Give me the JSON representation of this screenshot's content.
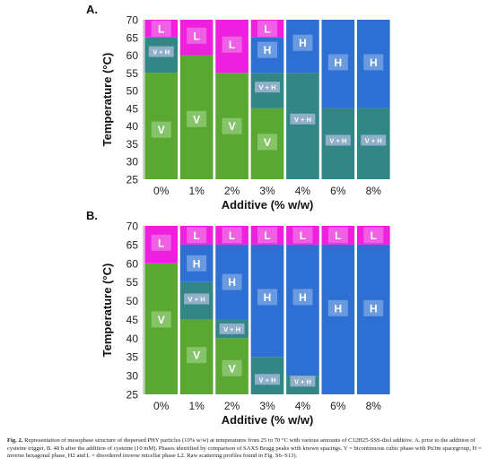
{
  "colors": {
    "V": "#5aa832",
    "L": "#ee1fde",
    "H": "#2e6fd3",
    "VH_base": "#2a8a7e",
    "VH_stripe": "#3f7f90",
    "label_box_V": "#86c46a",
    "label_box_L": "#f060e4",
    "label_box_H": "#6a9ae0",
    "label_box_VH": "#8fb0c8"
  },
  "caption": {
    "label": "Fig. 2.",
    "text": "Representation of mesophase structure of dispersed PHY particles (10% w/w) at temperatures from 25 to 70 °C with various amounts of C12H25-SSS-diol additive. A. prior to the addition of cysteine trigger, B. 48 h after the addition of cysteine (10 mM). Phases identified by comparison of SAXS Bragg peaks with known spacings. V = bicontinuous cubic phase with Pn3m spacegroup, H = inverse hexagonal phase, H2 and L = disordered inverse micellar phase L2. Raw scattering profiles found in Fig. S6–S13)."
  },
  "chart_data": [
    {
      "panel": "A.",
      "type": "bar",
      "xlabel": "Additive (% w/w)",
      "ylabel": "Temperature (°C)",
      "ylim": [
        25,
        70
      ],
      "yticks": [
        25,
        30,
        35,
        40,
        45,
        50,
        55,
        60,
        65,
        70
      ],
      "categories": [
        "0%",
        "1%",
        "2%",
        "3%",
        "4%",
        "6%",
        "8%"
      ],
      "columns": [
        {
          "segments": [
            {
              "phase": "V",
              "from": 25,
              "to": 55,
              "label": "V",
              "label_at": 39
            },
            {
              "phase": "VH",
              "from": 55,
              "to": 65,
              "label": "V + H",
              "label_at": 61
            },
            {
              "phase": "L",
              "from": 65,
              "to": 70,
              "label": "L",
              "label_at": 67.5
            }
          ]
        },
        {
          "segments": [
            {
              "phase": "V",
              "from": 25,
              "to": 60,
              "label": "V",
              "label_at": 42
            },
            {
              "phase": "L",
              "from": 60,
              "to": 70,
              "label": "L",
              "label_at": 65.5
            }
          ]
        },
        {
          "segments": [
            {
              "phase": "V",
              "from": 25,
              "to": 55,
              "label": "V",
              "label_at": 40
            },
            {
              "phase": "L",
              "from": 55,
              "to": 70,
              "label": "L",
              "label_at": 63
            }
          ]
        },
        {
          "segments": [
            {
              "phase": "V",
              "from": 25,
              "to": 45,
              "label": "V",
              "label_at": 35.5
            },
            {
              "phase": "VH",
              "from": 45,
              "to": 55,
              "label": "V + H",
              "label_at": 51
            },
            {
              "phase": "H",
              "from": 55,
              "to": 65,
              "label": "H",
              "label_at": 61.5
            },
            {
              "phase": "L",
              "from": 65,
              "to": 70,
              "label": "L",
              "label_at": 67.5
            }
          ]
        },
        {
          "segments": [
            {
              "phase": "VH",
              "from": 25,
              "to": 55,
              "label": "V + H",
              "label_at": 42
            },
            {
              "phase": "H",
              "from": 55,
              "to": 70,
              "label": "H",
              "label_at": 63.5
            }
          ]
        },
        {
          "segments": [
            {
              "phase": "VH",
              "from": 25,
              "to": 45,
              "label": "V + H",
              "label_at": 36
            },
            {
              "phase": "H",
              "from": 45,
              "to": 70,
              "label": "H",
              "label_at": 58
            }
          ]
        },
        {
          "segments": [
            {
              "phase": "VH",
              "from": 25,
              "to": 45,
              "label": "V + H",
              "label_at": 36
            },
            {
              "phase": "H",
              "from": 45,
              "to": 70,
              "label": "H",
              "label_at": 58
            }
          ]
        }
      ]
    },
    {
      "panel": "B.",
      "type": "bar",
      "xlabel": "Additive (% w/w)",
      "ylabel": "Temperature (°C)",
      "ylim": [
        25,
        70
      ],
      "yticks": [
        25,
        30,
        35,
        40,
        45,
        50,
        55,
        60,
        65,
        70
      ],
      "categories": [
        "0%",
        "1%",
        "2%",
        "3%",
        "4%",
        "6%",
        "8%"
      ],
      "columns": [
        {
          "segments": [
            {
              "phase": "V",
              "from": 25,
              "to": 60,
              "label": "V",
              "label_at": 45
            },
            {
              "phase": "L",
              "from": 60,
              "to": 70,
              "label": "L",
              "label_at": 65.5
            }
          ]
        },
        {
          "segments": [
            {
              "phase": "V",
              "from": 25,
              "to": 45,
              "label": "V",
              "label_at": 35.5
            },
            {
              "phase": "VH",
              "from": 45,
              "to": 55,
              "label": "V + H",
              "label_at": 50.5
            },
            {
              "phase": "H",
              "from": 55,
              "to": 65,
              "label": "H",
              "label_at": 60
            },
            {
              "phase": "L",
              "from": 65,
              "to": 70,
              "label": "L",
              "label_at": 67.5
            }
          ]
        },
        {
          "segments": [
            {
              "phase": "V",
              "from": 25,
              "to": 40,
              "label": "V",
              "label_at": 32
            },
            {
              "phase": "VH",
              "from": 40,
              "to": 45,
              "label": "V + H",
              "label_at": 42.5
            },
            {
              "phase": "H",
              "from": 45,
              "to": 65,
              "label": "H",
              "label_at": 55
            },
            {
              "phase": "L",
              "from": 65,
              "to": 70,
              "label": "L",
              "label_at": 67.5
            }
          ]
        },
        {
          "segments": [
            {
              "phase": "VH",
              "from": 25,
              "to": 35,
              "label": "V + H",
              "label_at": 29
            },
            {
              "phase": "H",
              "from": 35,
              "to": 65,
              "label": "H",
              "label_at": 51
            },
            {
              "phase": "L",
              "from": 65,
              "to": 70,
              "label": "L",
              "label_at": 67.5
            }
          ]
        },
        {
          "segments": [
            {
              "phase": "VH",
              "from": 25,
              "to": 30,
              "label": "V + H",
              "label_at": 28.5
            },
            {
              "phase": "H",
              "from": 30,
              "to": 65,
              "label": "H",
              "label_at": 51
            },
            {
              "phase": "L",
              "from": 65,
              "to": 70,
              "label": "L",
              "label_at": 67.5
            }
          ]
        },
        {
          "segments": [
            {
              "phase": "H",
              "from": 25,
              "to": 65,
              "label": "H",
              "label_at": 48
            },
            {
              "phase": "L",
              "from": 65,
              "to": 70,
              "label": "L",
              "label_at": 67.5
            }
          ]
        },
        {
          "segments": [
            {
              "phase": "H",
              "from": 25,
              "to": 65,
              "label": "H",
              "label_at": 48
            },
            {
              "phase": "L",
              "from": 65,
              "to": 70,
              "label": "L",
              "label_at": 67.5
            }
          ]
        }
      ]
    }
  ]
}
